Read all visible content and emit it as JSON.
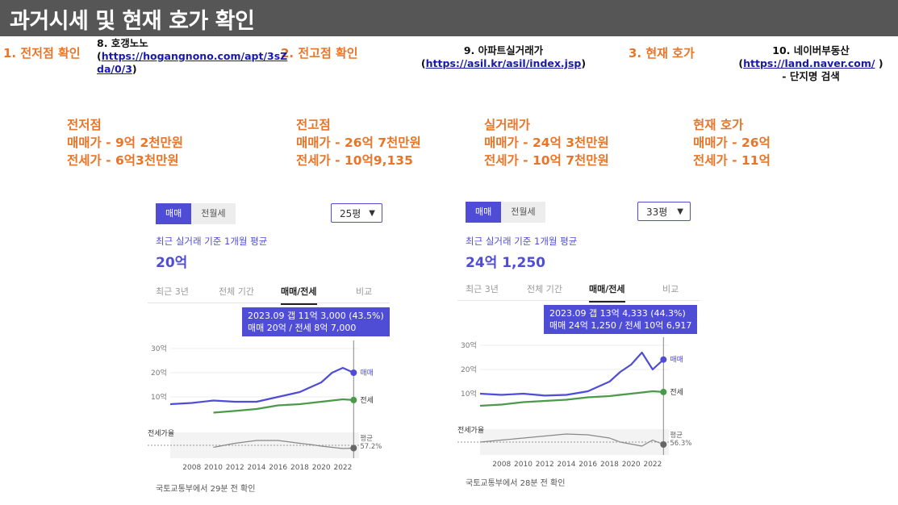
{
  "header": {
    "title": "과거시세 및 현재 호가 확인"
  },
  "steps": [
    {
      "label": "1. 전저점 확인"
    },
    {
      "label": "2. 전고점 확인"
    },
    {
      "label": "3. 현재 호가"
    }
  ],
  "refs": {
    "hogangnono": {
      "title": "8. 호갱노노",
      "open": "(",
      "url_line1": "https://hogangnono.com/apt/3sZ",
      "url_line2": "da/0/3",
      "close": ")"
    },
    "asil": {
      "title": "9. 아파트실거래가",
      "open": "(",
      "url": "https://asil.kr/asil/index.jsp",
      "close": ")"
    },
    "naver": {
      "title": "10. 네이버부동산",
      "open": "(",
      "url": "https://land.naver.com/",
      "close": " )",
      "note": "- 단지명 검색"
    }
  },
  "summary": [
    {
      "heading": "전저점",
      "line1": "매매가 - 9억 2천만원",
      "line2": "전세가 - 6억3천만원"
    },
    {
      "heading": "전고점",
      "line1": "매매가 - 26억 7천만원",
      "line2": "전세가 - 10억9,135"
    },
    {
      "heading": "실거래가",
      "line1": "매매가 - 24억 3천만원",
      "line2": "전세가 - 10억 7천만원"
    },
    {
      "heading": "현재 호가",
      "line1": "매매가 - 26억",
      "line2": "전세가 - 11억"
    }
  ],
  "cards": [
    {
      "seg_on": "매매",
      "seg_off": "전월세",
      "size": "25평",
      "subtitle": "최근 실거래 기준 1개월 평균",
      "price": "20억",
      "tabs": [
        "최근 3년",
        "전체 기간",
        "매매/전세",
        "비교"
      ],
      "active_tab": "매매/전세",
      "tooltip_line1": "2023.09  갭 11억 3,000 (43.5%)",
      "tooltip_line2": "매매 20억 / 전세 8억 7,000",
      "footer": "국토교통부에서 29분 전 확인",
      "avg_label": "평균",
      "avg_value": "57.2%"
    },
    {
      "seg_on": "매매",
      "seg_off": "전월세",
      "size": "33평",
      "subtitle": "최근 실거래 기준 1개월 평균",
      "price": "24억 1,250",
      "tabs": [
        "최근 3년",
        "전체 기간",
        "매매/전세",
        "비교"
      ],
      "active_tab": "매매/전세",
      "tooltip_line1": "2023.09  갭 13억 4,333 (44.3%)",
      "tooltip_line2": "매매 24억 1,250 / 전세 10억 6,917",
      "footer": "국토교통부에서 28분 전 확인",
      "avg_label": "평균",
      "avg_value": "56.3%"
    }
  ],
  "chart_data": [
    {
      "type": "line",
      "x": [
        2006,
        2008,
        2010,
        2012,
        2014,
        2016,
        2018,
        2019,
        2020,
        2021,
        2022,
        2023
      ],
      "series": [
        {
          "name": "매매",
          "values": [
            7,
            7.5,
            8.5,
            8,
            8,
            10,
            12,
            14,
            16,
            20,
            22,
            20
          ]
        },
        {
          "name": "전세",
          "values": [
            null,
            null,
            3.5,
            4.2,
            5,
            6.5,
            7,
            7.5,
            8,
            8.5,
            9,
            8.7
          ]
        }
      ],
      "ratio_series": {
        "name": "전세가율",
        "values": [
          null,
          null,
          45,
          55,
          62,
          62,
          55,
          52,
          48,
          45,
          42,
          43
        ]
      },
      "xlabel": "",
      "ylabel": "",
      "y_ticks": [
        "30억",
        "20억",
        "10억"
      ],
      "x_ticks": [
        "2008",
        "2010",
        "2012",
        "2014",
        "2016",
        "2018",
        "2020",
        "2022"
      ],
      "ylim": [
        0,
        30
      ],
      "ratio_label": "전세가율",
      "color_sale": "#4F4DD6",
      "color_jeonse": "#4A9A4A"
    },
    {
      "type": "line",
      "x": [
        2006,
        2008,
        2010,
        2012,
        2014,
        2016,
        2018,
        2019,
        2020,
        2021,
        2022,
        2023
      ],
      "series": [
        {
          "name": "매매",
          "values": [
            10,
            9.5,
            10,
            9.2,
            9.5,
            11,
            15,
            19,
            22,
            27,
            20,
            24.1
          ]
        },
        {
          "name": "전세",
          "values": [
            5,
            5.5,
            6.5,
            7,
            7.5,
            8.5,
            9,
            9.5,
            10,
            10.5,
            11,
            10.7
          ]
        }
      ],
      "ratio_series": {
        "name": "전세가율",
        "values": [
          50,
          55,
          60,
          65,
          70,
          68,
          60,
          50,
          45,
          40,
          55,
          44
        ]
      },
      "xlabel": "",
      "ylabel": "",
      "y_ticks": [
        "30억",
        "20억",
        "10억"
      ],
      "x_ticks": [
        "2008",
        "2010",
        "2012",
        "2014",
        "2016",
        "2018",
        "2020",
        "2022"
      ],
      "ylim": [
        0,
        30
      ],
      "ratio_label": "전세가율",
      "color_sale": "#4F4DD6",
      "color_jeonse": "#4A9A4A"
    }
  ]
}
